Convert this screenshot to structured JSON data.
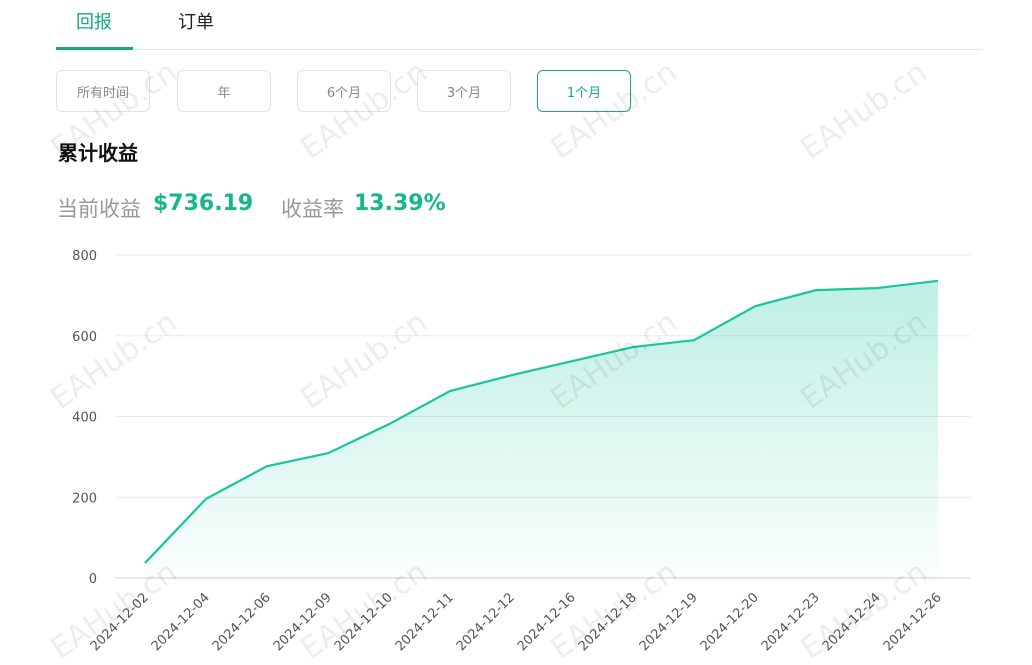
{
  "tabs": [
    "回报",
    "订单"
  ],
  "filters": [
    "所有时间",
    "年",
    "6个月",
    "3个月",
    "1个月"
  ],
  "heading": "累计收益",
  "stats": [
    {
      "label": "当前收益",
      "value": "$736.19"
    },
    {
      "label": "收益率",
      "value": "13.39%"
    }
  ],
  "watermark": "EAHub.cn",
  "chart_data": {
    "type": "line",
    "categories": [
      "2024-12-02",
      "2024-12-04",
      "2024-12-06",
      "2024-12-09",
      "2024-12-10",
      "2024-12-11",
      "2024-12-12",
      "2024-12-16",
      "2024-12-18",
      "2024-12-19",
      "2024-12-20",
      "2024-12-23",
      "2024-12-24",
      "2024-12-26"
    ],
    "values": [
      37,
      196,
      277,
      309,
      381,
      463,
      502,
      537,
      572,
      589,
      673,
      713,
      718,
      736
    ],
    "color": "#16c79a",
    "ylim": [
      0,
      800
    ],
    "yticks": [
      0,
      200,
      400,
      600,
      800
    ],
    "grid": true
  }
}
